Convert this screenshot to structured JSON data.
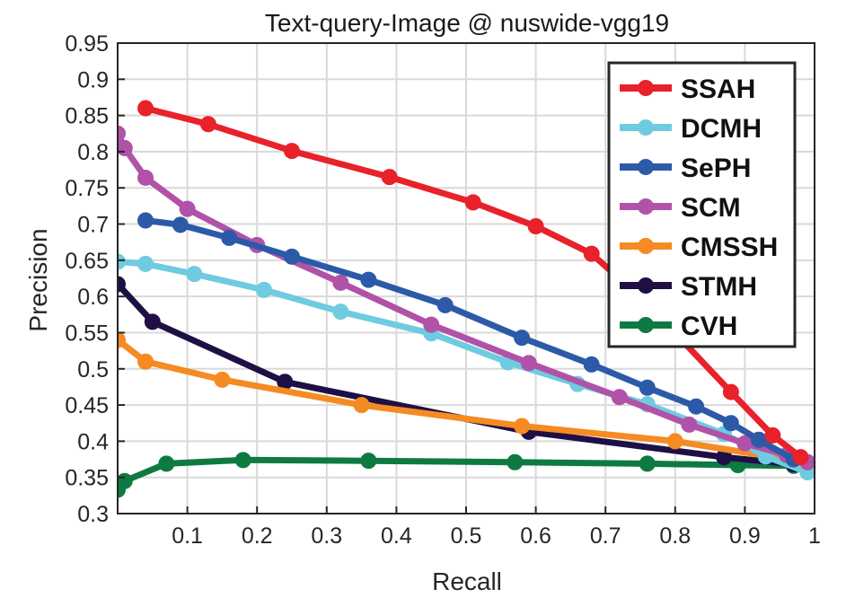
{
  "chart_data": {
    "type": "line",
    "title": "Text-query-Image @ nuswide-vgg19",
    "xlabel": "Recall",
    "ylabel": "Precision",
    "xlim": [
      0,
      1
    ],
    "ylim": [
      0.3,
      0.95
    ],
    "grid": true,
    "legend_position": "top-right",
    "x_ticks": [
      "0.1",
      "0.2",
      "0.3",
      "0.4",
      "0.5",
      "0.6",
      "0.7",
      "0.8",
      "0.9",
      "1"
    ],
    "y_ticks": [
      "0.3",
      "0.35",
      "0.4",
      "0.45",
      "0.5",
      "0.55",
      "0.6",
      "0.65",
      "0.7",
      "0.75",
      "0.8",
      "0.85",
      "0.9",
      "0.95"
    ],
    "series": [
      {
        "name": "SSAH",
        "color": "#e8212a",
        "x": [
          0.04,
          0.13,
          0.25,
          0.39,
          0.51,
          0.6,
          0.68,
          0.76,
          0.88,
          0.94,
          0.98
        ],
        "y": [
          0.86,
          0.838,
          0.801,
          0.765,
          0.73,
          0.697,
          0.659,
          0.59,
          0.468,
          0.408,
          0.378
        ]
      },
      {
        "name": "DCMH",
        "color": "#6fcbdf",
        "x": [
          0.0,
          0.04,
          0.11,
          0.21,
          0.32,
          0.45,
          0.56,
          0.66,
          0.76,
          0.87,
          0.93,
          0.99
        ],
        "y": [
          0.648,
          0.645,
          0.631,
          0.609,
          0.579,
          0.549,
          0.509,
          0.479,
          0.451,
          0.41,
          0.379,
          0.357
        ]
      },
      {
        "name": "SePH",
        "color": "#2c5aa8",
        "x": [
          0.04,
          0.09,
          0.16,
          0.25,
          0.36,
          0.47,
          0.58,
          0.68,
          0.76,
          0.83,
          0.88,
          0.92,
          0.97
        ],
        "y": [
          0.705,
          0.699,
          0.681,
          0.655,
          0.623,
          0.588,
          0.543,
          0.506,
          0.474,
          0.448,
          0.425,
          0.402,
          0.375
        ]
      },
      {
        "name": "SCM",
        "color": "#b052a8",
        "x": [
          0.0,
          0.01,
          0.04,
          0.1,
          0.2,
          0.32,
          0.45,
          0.59,
          0.72,
          0.82,
          0.9,
          0.96,
          0.99
        ],
        "y": [
          0.825,
          0.805,
          0.764,
          0.721,
          0.671,
          0.619,
          0.561,
          0.508,
          0.461,
          0.423,
          0.397,
          0.381,
          0.371
        ]
      },
      {
        "name": "CMSSH",
        "color": "#f58b22",
        "x": [
          0.0,
          0.04,
          0.15,
          0.35,
          0.58,
          0.8,
          0.93,
          0.98
        ],
        "y": [
          0.54,
          0.51,
          0.485,
          0.45,
          0.421,
          0.4,
          0.38,
          0.372
        ]
      },
      {
        "name": "STMH",
        "color": "#1e0f45",
        "x": [
          0.0,
          0.05,
          0.24,
          0.59,
          0.87,
          0.97
        ],
        "y": [
          0.617,
          0.565,
          0.482,
          0.413,
          0.378,
          0.368
        ]
      },
      {
        "name": "CVH",
        "color": "#0e7a42",
        "x": [
          0.0,
          0.01,
          0.07,
          0.18,
          0.36,
          0.57,
          0.76,
          0.89,
          0.97,
          0.99
        ],
        "y": [
          0.333,
          0.345,
          0.369,
          0.374,
          0.373,
          0.371,
          0.369,
          0.367,
          0.366,
          0.365
        ]
      }
    ]
  }
}
